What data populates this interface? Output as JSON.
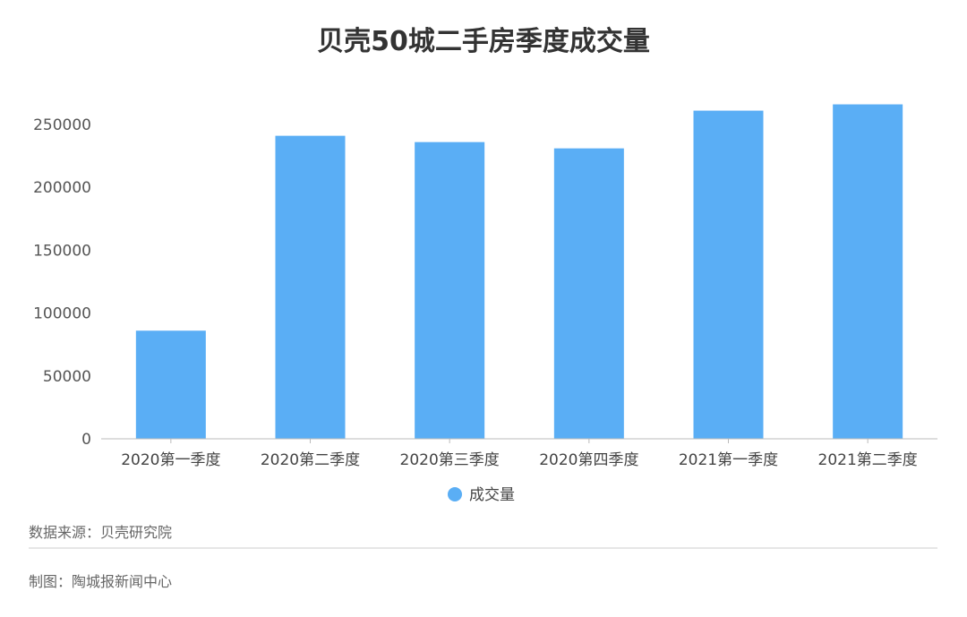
{
  "chart_data": {
    "type": "bar",
    "title": "贝壳50城二手房季度成交量",
    "categories": [
      "2020第一季度",
      "2020第二季度",
      "2020第三季度",
      "2020第四季度",
      "2021第一季度",
      "2021第二季度"
    ],
    "series": [
      {
        "name": "成交量",
        "values": [
          86000,
          241000,
          236000,
          231000,
          261000,
          266000
        ]
      }
    ],
    "ylim": [
      0,
      250000
    ],
    "yticks": [
      0,
      50000,
      100000,
      150000,
      200000,
      250000
    ],
    "legend_position": "bottom-center",
    "grid": false,
    "color": "#5aaef5"
  },
  "footer": {
    "source": "数据来源：贝壳研究院",
    "credit": "制图：陶城报新闻中心"
  }
}
